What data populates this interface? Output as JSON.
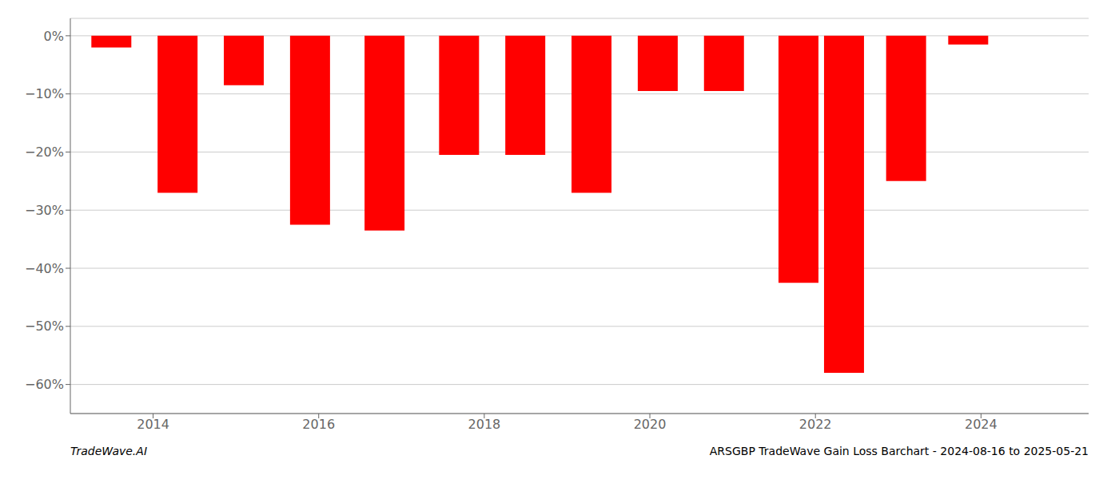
{
  "chart_data": {
    "type": "bar",
    "x": [
      2013.5,
      2014.3,
      2015.1,
      2015.9,
      2016.8,
      2017.7,
      2018.5,
      2019.3,
      2020.1,
      2020.9,
      2021.8,
      2022.35,
      2023.1,
      2023.85
    ],
    "values": [
      -2.0,
      -27.0,
      -8.5,
      -32.5,
      -33.5,
      -20.5,
      -20.5,
      -27.0,
      -9.5,
      -9.5,
      -42.5,
      -58.0,
      -25.0,
      -1.5
    ],
    "color": "#ff0000",
    "xlim": [
      2013.0,
      2025.3
    ],
    "xticks": [
      2014,
      2016,
      2018,
      2020,
      2022,
      2024
    ],
    "ylim": [
      -65,
      3
    ],
    "yticks": [
      {
        "value": 0,
        "label": "0%"
      },
      {
        "value": -10,
        "label": "−10%"
      },
      {
        "value": -20,
        "label": "−20%"
      },
      {
        "value": -30,
        "label": "−30%"
      },
      {
        "value": -40,
        "label": "−40%"
      },
      {
        "value": -50,
        "label": "−50%"
      },
      {
        "value": -60,
        "label": "−60%"
      }
    ],
    "grid": true,
    "annotations": [
      "TradeWave.AI",
      "ARSGBP TradeWave Gain Loss Barchart - 2024-08-16 to 2025-05-21"
    ]
  }
}
